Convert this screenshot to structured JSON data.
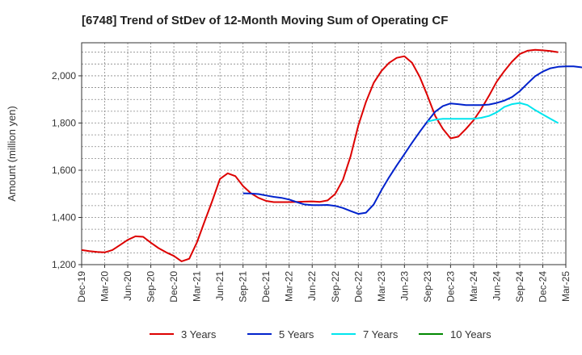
{
  "chart_data": {
    "type": "line",
    "title": "[6748]  Trend of StDev of 12-Month Moving Sum of Operating CF",
    "xlabel": "",
    "ylabel": "Amount (million yen)",
    "ylim": [
      1200,
      2140
    ],
    "y_ticks": [
      1200,
      1400,
      1600,
      1800,
      2000
    ],
    "y_tick_labels": [
      "1,200",
      "1,400",
      "1,600",
      "1,800",
      "2,000"
    ],
    "x_range": [
      "2019-12",
      "2025-03"
    ],
    "x_tick_labels": [
      "Dec-19",
      "Mar-20",
      "Jun-20",
      "Sep-20",
      "Dec-20",
      "Mar-21",
      "Jun-21",
      "Sep-21",
      "Dec-21",
      "Mar-22",
      "Jun-22",
      "Sep-22",
      "Dec-22",
      "Mar-23",
      "Jun-23",
      "Sep-23",
      "Dec-23",
      "Mar-24",
      "Jun-24",
      "Sep-24",
      "Dec-24",
      "Mar-25"
    ],
    "grid": true,
    "legend_position": "bottom",
    "series": [
      {
        "name": "3 Years",
        "color": "#dd0000",
        "start": "2019-12",
        "values": [
          1262,
          1257,
          1254,
          1252,
          1262,
          1283,
          1305,
          1320,
          1318,
          1293,
          1270,
          1252,
          1237,
          1214,
          1225,
          1294,
          1383,
          1470,
          1563,
          1587,
          1575,
          1533,
          1503,
          1483,
          1470,
          1465,
          1465,
          1465,
          1466,
          1467,
          1468,
          1466,
          1472,
          1500,
          1560,
          1660,
          1790,
          1890,
          1970,
          2020,
          2055,
          2076,
          2083,
          2055,
          1995,
          1915,
          1830,
          1775,
          1735,
          1742,
          1775,
          1812,
          1860,
          1915,
          1975,
          2020,
          2060,
          2092,
          2106,
          2110,
          2108,
          2105,
          2100
        ]
      },
      {
        "name": "5 Years",
        "color": "#0022cc",
        "start": "2021-09",
        "values": [
          1502,
          1501,
          1499,
          1493,
          1487,
          1483,
          1476,
          1465,
          1455,
          1452,
          1452,
          1453,
          1449,
          1440,
          1427,
          1415,
          1420,
          1455,
          1515,
          1570,
          1620,
          1668,
          1717,
          1763,
          1807,
          1848,
          1872,
          1883,
          1880,
          1876,
          1876,
          1876,
          1878,
          1885,
          1895,
          1910,
          1935,
          1967,
          1998,
          2018,
          2032,
          2038,
          2040,
          2040,
          2036,
          2034
        ]
      },
      {
        "name": "7 Years",
        "color": "#00e5ee",
        "start": "2023-09",
        "values": [
          1806,
          1814,
          1818,
          1818,
          1818,
          1818,
          1818,
          1822,
          1830,
          1845,
          1868,
          1880,
          1885,
          1876,
          1855,
          1836,
          1818,
          1800
        ]
      },
      {
        "name": "10 Years",
        "color": "#008800",
        "start": "2019-12",
        "values": []
      }
    ]
  }
}
